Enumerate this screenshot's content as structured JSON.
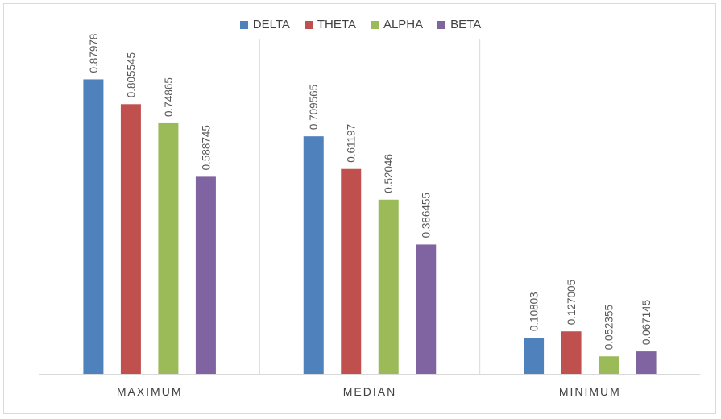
{
  "chart_data": {
    "type": "bar",
    "categories": [
      "MAXIMUM",
      "MEDIAN",
      "MINIMUM"
    ],
    "series": [
      {
        "name": "DELTA",
        "color": "#4F81BD",
        "values": [
          0.87978,
          0.709565,
          0.10803
        ]
      },
      {
        "name": "THETA",
        "color": "#C0504D",
        "values": [
          0.805545,
          0.61197,
          0.127005
        ]
      },
      {
        "name": "ALPHA",
        "color": "#9BBB59",
        "values": [
          0.74865,
          0.52046,
          0.052355
        ]
      },
      {
        "name": "BETA",
        "color": "#8064A2",
        "values": [
          0.588745,
          0.386455,
          0.067145
        ]
      }
    ],
    "value_labels": [
      [
        "0.87978",
        "0.709565",
        "0.10803"
      ],
      [
        "0.805545",
        "0.61197",
        "0.127005"
      ],
      [
        "0.74865",
        "0.52046",
        "0.052355"
      ],
      [
        "0.588745",
        "0.386455",
        "0.067145"
      ]
    ],
    "title": "",
    "xlabel": "",
    "ylabel": "",
    "ylim": [
      0,
      1
    ],
    "grid": false,
    "legend_position": "top-center"
  }
}
